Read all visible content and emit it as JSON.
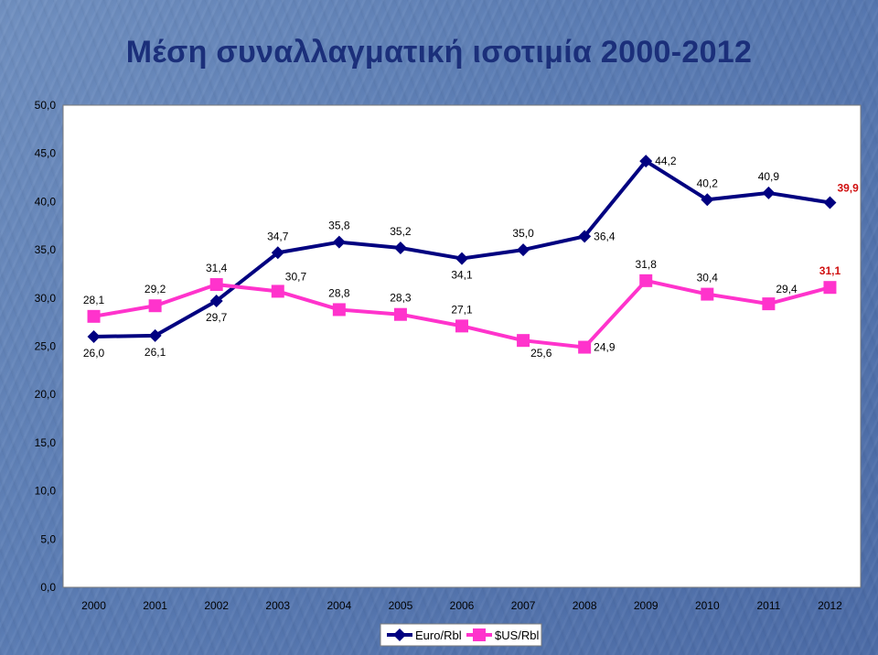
{
  "chart_data": {
    "type": "line",
    "title": "Μέση συναλλαγματική ισοτιμία 2000-2012",
    "categories": [
      "2000",
      "2001",
      "2002",
      "2003",
      "2004",
      "2005",
      "2006",
      "2007",
      "2008",
      "2009",
      "2010",
      "2011",
      "2012"
    ],
    "ylim": [
      0,
      50
    ],
    "yticks": [
      "0,0",
      "5,0",
      "10,0",
      "15,0",
      "20,0",
      "25,0",
      "30,0",
      "35,0",
      "40,0",
      "45,0",
      "50,0"
    ],
    "grid": false,
    "legend_position": "bottom",
    "series": [
      {
        "name": "Euro/Rbl",
        "color": "#000080",
        "marker": "diamond",
        "values": [
          26.0,
          26.1,
          29.7,
          34.7,
          35.8,
          35.2,
          34.1,
          35.0,
          36.4,
          44.2,
          40.2,
          40.9,
          39.9
        ],
        "labels": [
          "26,0",
          "26,1",
          "29,7",
          "34,7",
          "35,8",
          "35,2",
          "34,1",
          "35,0",
          "36,4",
          "44,2",
          "40,2",
          "40,9",
          "39,9"
        ],
        "label_positions": [
          "below",
          "below",
          "below",
          "above",
          "above",
          "above",
          "below",
          "above",
          "right",
          "right",
          "above",
          "above",
          "above-right"
        ],
        "highlight_last_color": "#d01010"
      },
      {
        "name": "$US/Rbl",
        "color": "#ff33cc",
        "marker": "square",
        "values": [
          28.1,
          29.2,
          31.4,
          30.7,
          28.8,
          28.3,
          27.1,
          25.6,
          24.9,
          31.8,
          30.4,
          29.4,
          31.1
        ],
        "labels": [
          "28,1",
          "29,2",
          "31,4",
          "30,7",
          "28,8",
          "28,3",
          "27,1",
          "25,6",
          "24,9",
          "31,8",
          "30,4",
          "29,4",
          "31,1"
        ],
        "label_positions": [
          "above",
          "above",
          "above",
          "above-right",
          "above",
          "above",
          "above",
          "below-right",
          "right",
          "above",
          "above",
          "above-right",
          "above"
        ],
        "highlight_last_color": "#d01010"
      }
    ]
  }
}
